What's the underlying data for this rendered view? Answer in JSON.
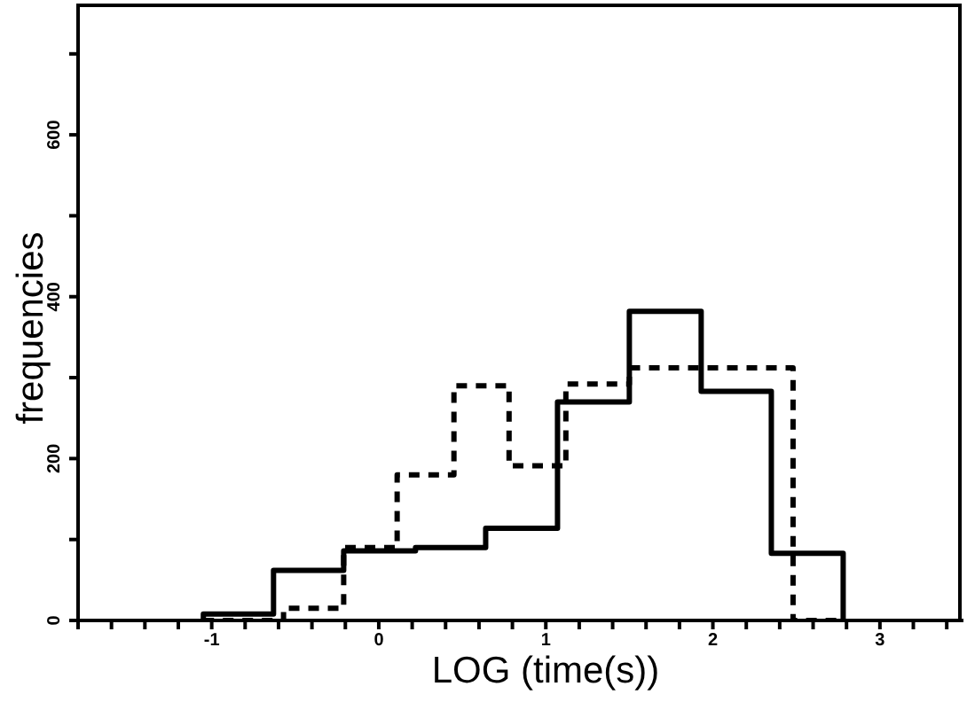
{
  "chart_data": {
    "type": "histogram",
    "xlabel": "LOG (time(s))",
    "ylabel": "frequencies",
    "xlim": [
      -1.8,
      3.5
    ],
    "ylim": [
      0,
      760
    ],
    "xticks": [
      {
        "value": -1.8,
        "label": null
      },
      {
        "value": -1.6,
        "label": null
      },
      {
        "value": -1.4,
        "label": null
      },
      {
        "value": -1.2,
        "label": null
      },
      -1,
      {
        "value": -0.8,
        "label": null
      },
      {
        "value": -0.6,
        "label": null
      },
      {
        "value": -0.4,
        "label": null
      },
      {
        "value": -0.2,
        "label": null
      },
      0,
      {
        "value": 0.2,
        "label": null
      },
      {
        "value": 0.4,
        "label": null
      },
      {
        "value": 0.6,
        "label": null
      },
      {
        "value": 0.8,
        "label": null
      },
      1,
      {
        "value": 1.2,
        "label": null
      },
      {
        "value": 1.4,
        "label": null
      },
      {
        "value": 1.6,
        "label": null
      },
      {
        "value": 1.8,
        "label": null
      },
      2,
      {
        "value": 2.2,
        "label": null
      },
      {
        "value": 2.4,
        "label": null
      },
      {
        "value": 2.6,
        "label": null
      },
      {
        "value": 2.8,
        "label": null
      },
      3,
      {
        "value": 3.2,
        "label": null
      },
      {
        "value": 3.4,
        "label": null
      }
    ],
    "yticks": [
      0,
      {
        "value": 100,
        "label": null
      },
      200,
      {
        "value": 300,
        "label": null
      },
      400,
      {
        "value": 500,
        "label": null
      },
      600,
      {
        "value": 700,
        "label": null
      }
    ],
    "bins": [
      -1.05,
      -0.63,
      -0.57,
      -0.21,
      0.11,
      0.22,
      0.45,
      0.64,
      0.78,
      1.07,
      1.12,
      1.5,
      1.93,
      2.35,
      2.48,
      2.78
    ],
    "series": [
      {
        "color": "#000000",
        "line_style": "solid",
        "values": [
          8,
          62,
          62,
          86,
          86,
          90,
          90,
          114,
          114,
          270,
          270,
          382,
          283,
          83,
          83
        ]
      },
      {
        "color": "#000000",
        "line_style": "dashed",
        "values": [
          0,
          0,
          15,
          90,
          180,
          180,
          290,
          290,
          191,
          191,
          292,
          312,
          312,
          312,
          0
        ]
      }
    ]
  }
}
